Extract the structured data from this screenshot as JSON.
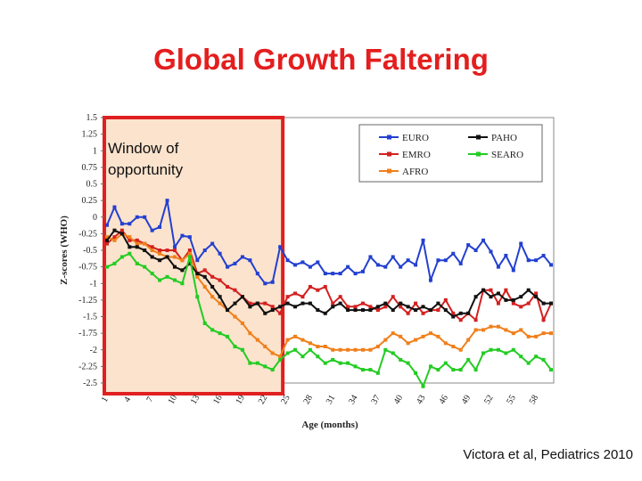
{
  "slide": {
    "title": "Global Growth Faltering",
    "citation": "Victora et al, Pediatrics 2010"
  },
  "chart_data": {
    "type": "line",
    "ylabel": "Z-scores (WHO)",
    "xlabel": "Age (months)",
    "ylim": [
      -2.5,
      1.5
    ],
    "yticks": [
      "1.5",
      "1.25",
      "1",
      "0.75",
      "0.5",
      "0.25",
      "0",
      "-0.25",
      "-0.5",
      "-0.75",
      "-1",
      "-1.25",
      "-1.5",
      "-1.75",
      "-2",
      "-2.25",
      "-2.5"
    ],
    "xticks": [
      "1",
      "4",
      "7",
      "10",
      "13",
      "16",
      "19",
      "22",
      "25",
      "28",
      "31",
      "34",
      "37",
      "40",
      "43",
      "46",
      "49",
      "52",
      "55",
      "58"
    ],
    "x": [
      1,
      2,
      3,
      4,
      5,
      6,
      7,
      8,
      9,
      10,
      11,
      12,
      13,
      14,
      15,
      16,
      17,
      18,
      19,
      20,
      21,
      22,
      23,
      24,
      25,
      26,
      27,
      28,
      29,
      30,
      31,
      32,
      33,
      34,
      35,
      36,
      37,
      38,
      39,
      40,
      41,
      42,
      43,
      44,
      45,
      46,
      47,
      48,
      49,
      50,
      51,
      52,
      53,
      54,
      55,
      56,
      57,
      58,
      59,
      60
    ],
    "annotation": {
      "text_line1": "Window of",
      "text_line2": "opportunity",
      "x_range": [
        1,
        24
      ],
      "color": "#e02020",
      "fill": "#fbe3cd"
    },
    "legend_position": "top-right",
    "series": [
      {
        "name": "EURO",
        "color": "#2340d0",
        "marker": "square",
        "values": [
          -0.12,
          0.15,
          -0.1,
          -0.1,
          0.0,
          0.0,
          -0.2,
          -0.15,
          0.25,
          -0.45,
          -0.28,
          -0.3,
          -0.65,
          -0.5,
          -0.4,
          -0.55,
          -0.75,
          -0.7,
          -0.6,
          -0.65,
          -0.85,
          -1.0,
          -0.98,
          -0.45,
          -0.65,
          -0.72,
          -0.68,
          -0.75,
          -0.68,
          -0.85,
          -0.85,
          -0.85,
          -0.75,
          -0.85,
          -0.82,
          -0.6,
          -0.72,
          -0.75,
          -0.6,
          -0.75,
          -0.65,
          -0.72,
          -0.35,
          -0.95,
          -0.65,
          -0.65,
          -0.55,
          -0.7,
          -0.42,
          -0.5,
          -0.35,
          -0.52,
          -0.75,
          -0.58,
          -0.8,
          -0.4,
          -0.65,
          -0.65,
          -0.58,
          -0.72
        ]
      },
      {
        "name": "PAHO",
        "color": "#111111",
        "marker": "square",
        "values": [
          -0.35,
          -0.2,
          -0.25,
          -0.45,
          -0.45,
          -0.5,
          -0.6,
          -0.65,
          -0.6,
          -0.75,
          -0.8,
          -0.7,
          -0.85,
          -0.9,
          -1.05,
          -1.2,
          -1.4,
          -1.3,
          -1.2,
          -1.35,
          -1.3,
          -1.45,
          -1.4,
          -1.35,
          -1.3,
          -1.35,
          -1.3,
          -1.3,
          -1.4,
          -1.45,
          -1.35,
          -1.3,
          -1.4,
          -1.4,
          -1.4,
          -1.4,
          -1.35,
          -1.3,
          -1.4,
          -1.3,
          -1.35,
          -1.4,
          -1.35,
          -1.4,
          -1.3,
          -1.4,
          -1.5,
          -1.45,
          -1.45,
          -1.2,
          -1.1,
          -1.2,
          -1.15,
          -1.25,
          -1.25,
          -1.2,
          -1.1,
          -1.2,
          -1.3,
          -1.3
        ]
      },
      {
        "name": "EMRO",
        "color": "#d42020",
        "marker": "square",
        "values": [
          -0.4,
          -0.3,
          -0.2,
          -0.35,
          -0.35,
          -0.4,
          -0.45,
          -0.5,
          -0.5,
          -0.5,
          -0.65,
          -0.5,
          -0.85,
          -0.8,
          -0.9,
          -0.95,
          -1.05,
          -1.1,
          -1.2,
          -1.3,
          -1.3,
          -1.3,
          -1.35,
          -1.45,
          -1.2,
          -1.15,
          -1.2,
          -1.05,
          -1.1,
          -1.05,
          -1.3,
          -1.2,
          -1.35,
          -1.35,
          -1.3,
          -1.35,
          -1.4,
          -1.35,
          -1.2,
          -1.35,
          -1.45,
          -1.3,
          -1.45,
          -1.4,
          -1.4,
          -1.25,
          -1.45,
          -1.55,
          -1.45,
          -1.55,
          -1.1,
          -1.1,
          -1.3,
          -1.1,
          -1.3,
          -1.35,
          -1.3,
          -1.15,
          -1.55,
          -1.3
        ]
      },
      {
        "name": "SEARO",
        "color": "#22cc22",
        "marker": "square",
        "values": [
          -0.75,
          -0.7,
          -0.6,
          -0.55,
          -0.7,
          -0.75,
          -0.85,
          -0.95,
          -0.9,
          -0.95,
          -1.0,
          -0.6,
          -1.2,
          -1.6,
          -1.7,
          -1.75,
          -1.8,
          -1.95,
          -2.0,
          -2.2,
          -2.2,
          -2.25,
          -2.3,
          -2.15,
          -2.05,
          -2.0,
          -2.1,
          -2.0,
          -2.1,
          -2.2,
          -2.15,
          -2.2,
          -2.2,
          -2.25,
          -2.3,
          -2.3,
          -2.35,
          -2.0,
          -2.05,
          -2.15,
          -2.2,
          -2.35,
          -2.55,
          -2.25,
          -2.3,
          -2.2,
          -2.3,
          -2.3,
          -2.15,
          -2.3,
          -2.05,
          -2.0,
          -2.0,
          -2.05,
          -2.0,
          -2.1,
          -2.2,
          -2.1,
          -2.15,
          -2.3
        ]
      },
      {
        "name": "AFRO",
        "color": "#f07f1a",
        "marker": "square",
        "values": [
          -0.3,
          -0.35,
          -0.25,
          -0.3,
          -0.4,
          -0.4,
          -0.5,
          -0.55,
          -0.6,
          -0.6,
          -0.65,
          -0.55,
          -0.9,
          -1.05,
          -1.2,
          -1.3,
          -1.4,
          -1.5,
          -1.6,
          -1.75,
          -1.85,
          -1.95,
          -2.05,
          -2.1,
          -1.85,
          -1.8,
          -1.85,
          -1.9,
          -1.95,
          -1.95,
          -2.0,
          -2.0,
          -2.0,
          -2.0,
          -2.0,
          -2.0,
          -1.95,
          -1.85,
          -1.75,
          -1.8,
          -1.9,
          -1.85,
          -1.8,
          -1.75,
          -1.8,
          -1.9,
          -1.95,
          -2.0,
          -1.85,
          -1.7,
          -1.7,
          -1.65,
          -1.65,
          -1.7,
          -1.75,
          -1.7,
          -1.8,
          -1.8,
          -1.75,
          -1.75
        ]
      }
    ]
  }
}
